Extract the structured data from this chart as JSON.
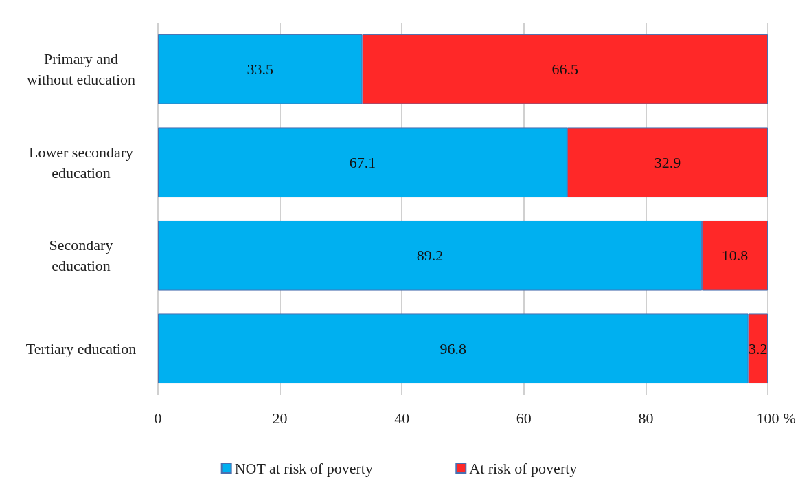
{
  "chart_data": {
    "type": "bar",
    "orientation": "horizontal",
    "stacked": true,
    "categories": [
      "Primary and\nwithout education",
      "Lower secondary\neducation",
      "Secondary\neducation",
      "Tertiary education"
    ],
    "series": [
      {
        "name": "NOT at risk of poverty",
        "color": "#00b0f0",
        "values": [
          33.5,
          67.1,
          89.2,
          96.8
        ]
      },
      {
        "name": "At risk of poverty",
        "color": "#ff2828",
        "values": [
          66.5,
          32.9,
          10.8,
          3.2
        ]
      }
    ],
    "xlabel": "%",
    "xlim": [
      0,
      100
    ],
    "xticks": [
      0,
      20,
      40,
      60,
      80,
      100
    ],
    "grid": "x",
    "legend": "bottom",
    "data_labels": true
  }
}
